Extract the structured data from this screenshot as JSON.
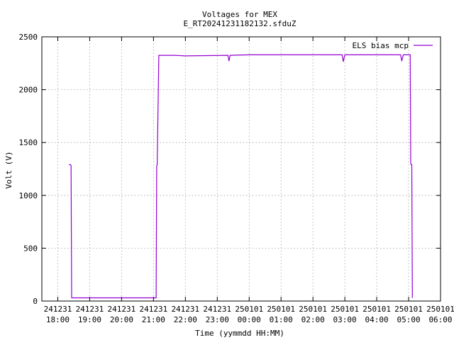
{
  "chart_data": {
    "type": "line",
    "title": "Voltages for MEX",
    "subtitle": "E_RT20241231182132.sfduZ",
    "xlabel": "Time (yymmdd HH:MM)",
    "ylabel": "Volt (V)",
    "xlim": [
      "241231 17:30",
      "250101 06:00"
    ],
    "ylim": [
      0,
      2500
    ],
    "grid": true,
    "legend_position": "top-right",
    "x_ticks": [
      {
        "date": "241231",
        "time": "18:00"
      },
      {
        "date": "241231",
        "time": "19:00"
      },
      {
        "date": "241231",
        "time": "20:00"
      },
      {
        "date": "241231",
        "time": "21:00"
      },
      {
        "date": "241231",
        "time": "22:00"
      },
      {
        "date": "241231",
        "time": "23:00"
      },
      {
        "date": "250101",
        "time": "00:00"
      },
      {
        "date": "250101",
        "time": "01:00"
      },
      {
        "date": "250101",
        "time": "02:00"
      },
      {
        "date": "250101",
        "time": "03:00"
      },
      {
        "date": "250101",
        "time": "04:00"
      },
      {
        "date": "250101",
        "time": "05:00"
      },
      {
        "date": "250101",
        "time": "06:00"
      }
    ],
    "y_ticks": [
      "0",
      "500",
      "1000",
      "1500",
      "2000",
      "2500"
    ],
    "series": [
      {
        "name": "ELS bias mcp",
        "color": "#9400d3",
        "x": [
          "241231 18:21",
          "241231 18:24",
          "241231 18:25",
          "241231 18:26",
          "241231 21:05",
          "241231 21:06",
          "241231 21:07",
          "241231 21:10",
          "241231 21:40",
          "241231 22:00",
          "241231 23:20",
          "241231 23:22",
          "241231 23:24",
          "250101 00:00",
          "250101 02:55",
          "250101 02:57",
          "250101 03:00",
          "250101 04:45",
          "250101 04:47",
          "250101 04:50",
          "250101 05:03",
          "250101 05:04",
          "250101 05:05",
          "250101 05:06",
          "250101 05:07"
        ],
        "y": [
          1290,
          1290,
          1280,
          30,
          30,
          1280,
          1290,
          2325,
          2325,
          2320,
          2325,
          2270,
          2325,
          2330,
          2330,
          2265,
          2330,
          2330,
          2270,
          2330,
          2330,
          1300,
          1290,
          1290,
          30
        ]
      }
    ]
  }
}
